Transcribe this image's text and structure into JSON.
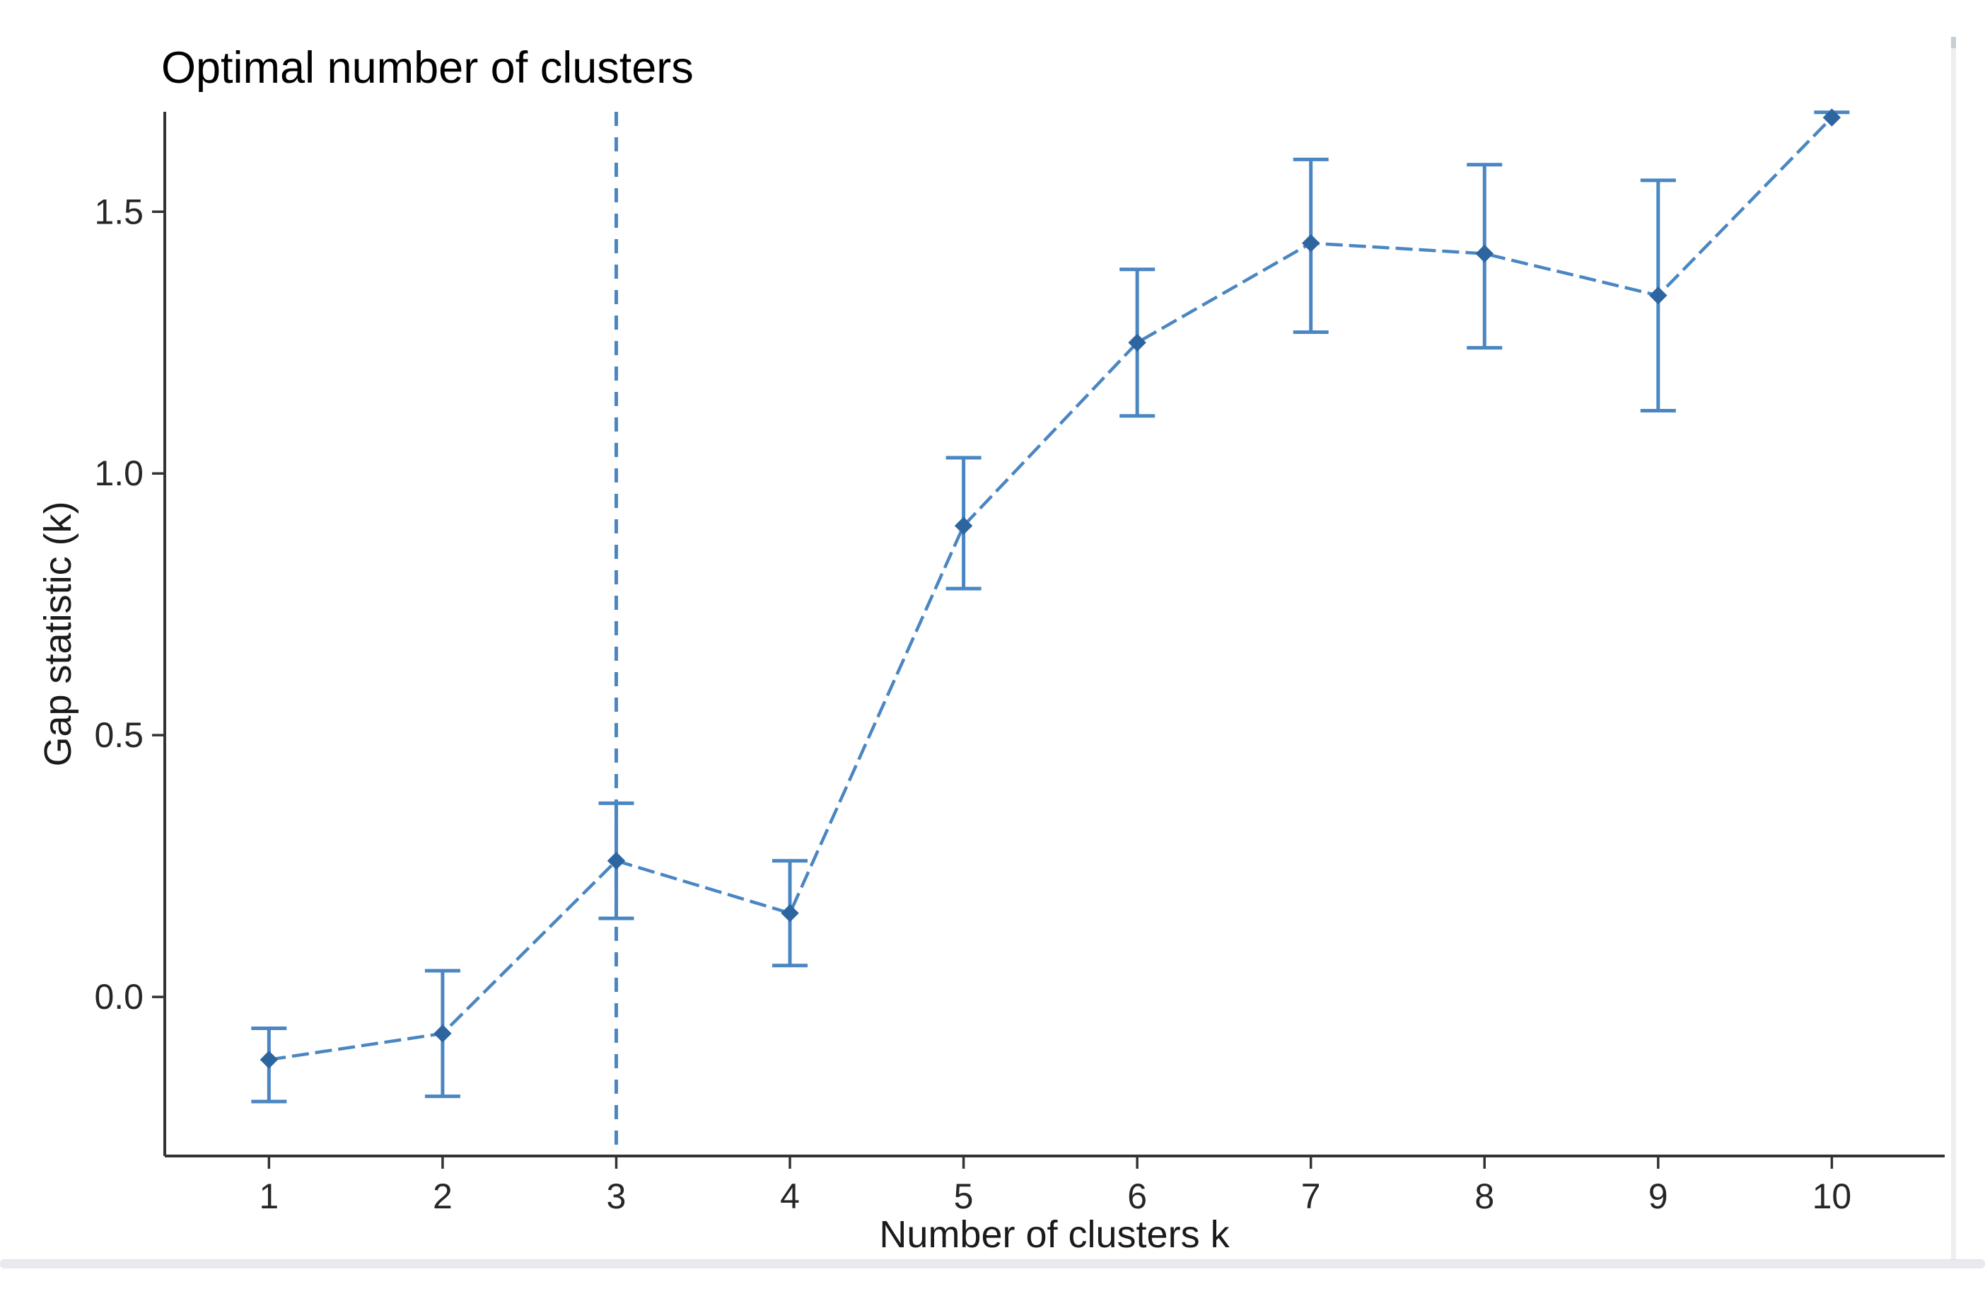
{
  "chart_data": {
    "type": "line",
    "title": "Optimal number of clusters",
    "xlabel": "Number of clusters k",
    "ylabel": "Gap statistic (k)",
    "legend": "none",
    "grid": false,
    "xlim": [
      0.4,
      10.65
    ],
    "ylim": [
      -0.304,
      1.691
    ],
    "x_ticks": [
      {
        "value": 1,
        "label": "1"
      },
      {
        "value": 2,
        "label": "2"
      },
      {
        "value": 3,
        "label": "3"
      },
      {
        "value": 4,
        "label": "4"
      },
      {
        "value": 5,
        "label": "5"
      },
      {
        "value": 6,
        "label": "6"
      },
      {
        "value": 7,
        "label": "7"
      },
      {
        "value": 8,
        "label": "8"
      },
      {
        "value": 9,
        "label": "9"
      },
      {
        "value": 10,
        "label": "10"
      }
    ],
    "y_ticks": [
      {
        "value": 0.0,
        "label": "0.0"
      },
      {
        "value": 0.5,
        "label": "0.5"
      },
      {
        "value": 1.0,
        "label": "1.0"
      },
      {
        "value": 1.5,
        "label": "1.5"
      }
    ],
    "optimal_k": 3,
    "series": [
      {
        "name": "Gap statistic",
        "points": [
          {
            "k": 1,
            "gap": -0.12,
            "ymin": -0.2,
            "ymax": -0.06
          },
          {
            "k": 2,
            "gap": -0.07,
            "ymin": -0.19,
            "ymax": 0.05
          },
          {
            "k": 3,
            "gap": 0.26,
            "ymin": 0.15,
            "ymax": 0.37
          },
          {
            "k": 4,
            "gap": 0.16,
            "ymin": 0.06,
            "ymax": 0.26
          },
          {
            "k": 5,
            "gap": 0.9,
            "ymin": 0.78,
            "ymax": 1.03
          },
          {
            "k": 6,
            "gap": 1.25,
            "ymin": 1.11,
            "ymax": 1.39
          },
          {
            "k": 7,
            "gap": 1.44,
            "ymin": 1.27,
            "ymax": 1.6
          },
          {
            "k": 8,
            "gap": 1.42,
            "ymin": 1.24,
            "ymax": 1.59
          },
          {
            "k": 9,
            "gap": 1.34,
            "ymin": 1.12,
            "ymax": 1.56
          },
          {
            "k": 10,
            "gap": 1.68,
            "ymin": null,
            "ymax": 1.69
          }
        ]
      }
    ],
    "colors": {
      "line": "#4a86c2",
      "marker": "#2d65a0",
      "errorbar": "#4a86c2",
      "vline": "#4a86c2",
      "axis": "#333333",
      "tick_text": "#262626"
    }
  }
}
